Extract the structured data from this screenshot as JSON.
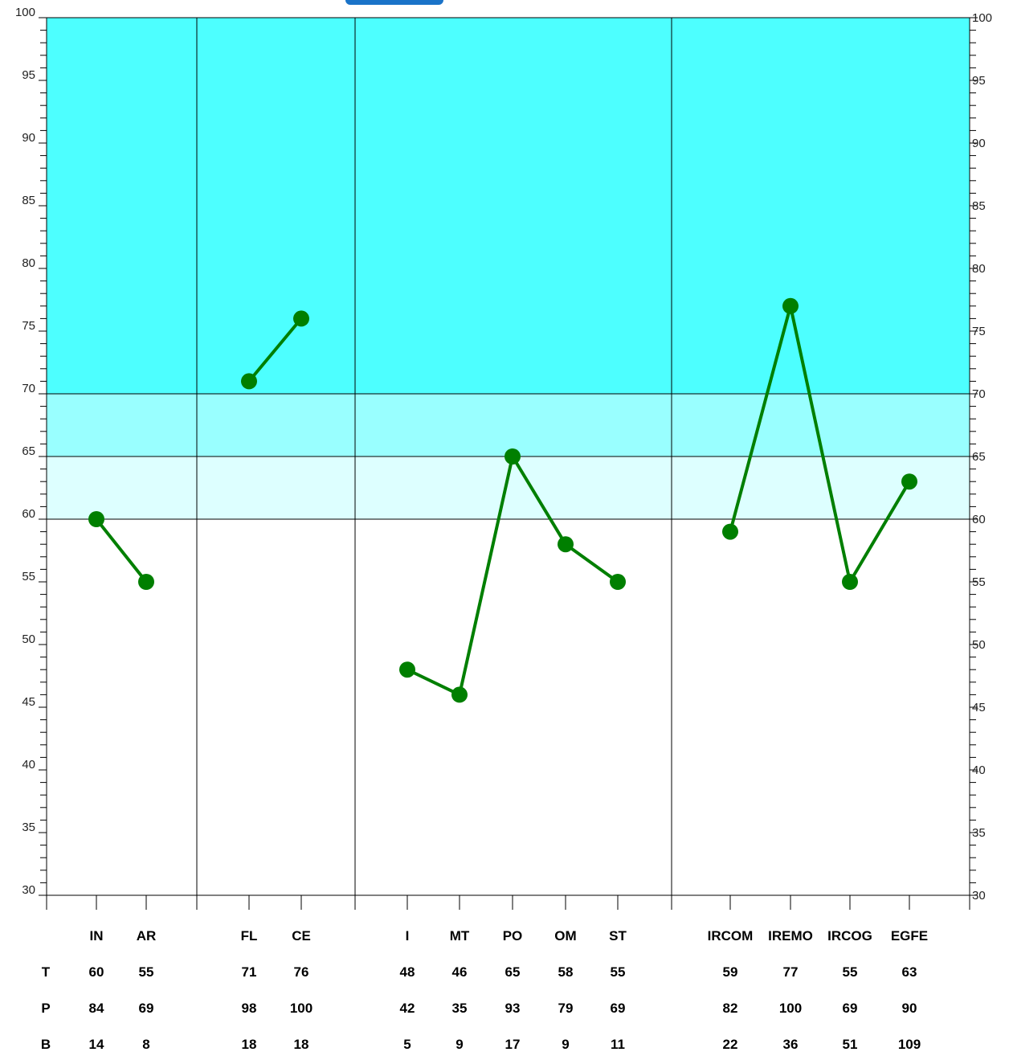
{
  "colors": {
    "band_high": "#4dffff",
    "band_mid": "#99ffff",
    "band_low": "#ddffff",
    "background": "#ffffff",
    "line": "#007f00",
    "marker": "#007f00",
    "header_partial": "#1a73c8"
  },
  "chart_data": {
    "type": "line",
    "ylim": [
      30,
      100
    ],
    "y_ticks": [
      30,
      35,
      40,
      45,
      50,
      55,
      60,
      65,
      70,
      75,
      80,
      85,
      90,
      95,
      100
    ],
    "bands": [
      {
        "from": 70,
        "to": 100,
        "color": "#4dffff"
      },
      {
        "from": 65,
        "to": 70,
        "color": "#99ffff"
      },
      {
        "from": 60,
        "to": 65,
        "color": "#ddffff"
      }
    ],
    "groups": [
      {
        "categories": [
          "IN",
          "AR"
        ],
        "values": [
          60,
          55
        ]
      },
      {
        "categories": [
          "FL",
          "CE"
        ],
        "values": [
          71,
          76
        ]
      },
      {
        "categories": [
          "I",
          "MT",
          "PO",
          "OM",
          "ST"
        ],
        "values": [
          48,
          46,
          65,
          58,
          55
        ]
      },
      {
        "categories": [
          "IRCOM",
          "IREMO",
          "IRCOG",
          "EGFE"
        ],
        "values": [
          59,
          77,
          55,
          63
        ]
      }
    ],
    "table": {
      "rows": [
        {
          "label": "T",
          "values": [
            "60",
            "55",
            "71",
            "76",
            "48",
            "46",
            "65",
            "58",
            "55",
            "59",
            "77",
            "55",
            "63"
          ]
        },
        {
          "label": "P",
          "values": [
            "84",
            "69",
            "98",
            "100",
            "42",
            "35",
            "93",
            "79",
            "69",
            "82",
            "100",
            "69",
            "90"
          ]
        },
        {
          "label": "B",
          "values": [
            "14",
            "8",
            "18",
            "18",
            "5",
            "9",
            "17",
            "9",
            "11",
            "22",
            "36",
            "51",
            "109"
          ]
        }
      ]
    },
    "grid": true,
    "legend": "none"
  }
}
